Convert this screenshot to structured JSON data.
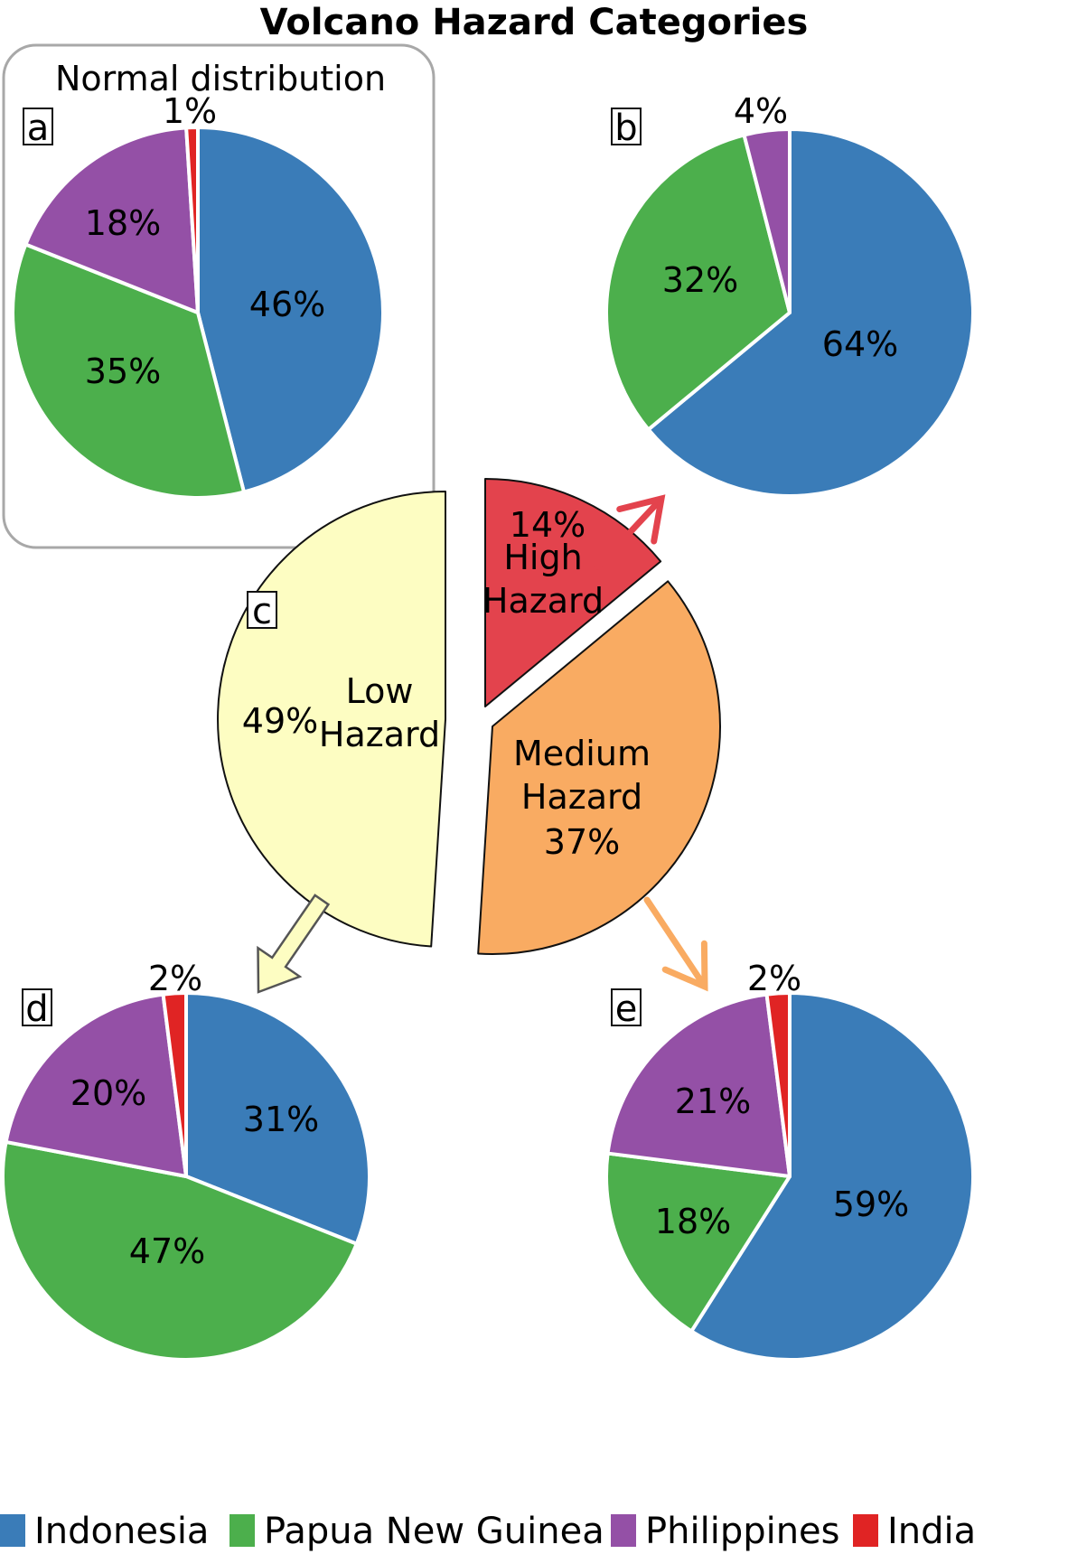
{
  "title": "Volcano Hazard Categories",
  "legend": [
    {
      "name": "Indonesia",
      "color": "#3a7cb8"
    },
    {
      "name": "Papua New Guinea",
      "color": "#4caf4c"
    },
    {
      "name": "Philippines",
      "color": "#9450a6"
    },
    {
      "name": "India",
      "color": "#e02424"
    }
  ],
  "chart_data": [
    {
      "type": "pie",
      "panel": "a",
      "subtitle": "Normal distribution",
      "categories": [
        "Indonesia",
        "Papua New Guinea",
        "Philippines",
        "India"
      ],
      "values": [
        46,
        35,
        18,
        1
      ],
      "labels": [
        "46%",
        "35%",
        "18%",
        "1%"
      ]
    },
    {
      "type": "pie",
      "panel": "b",
      "categories": [
        "Indonesia",
        "Papua New Guinea",
        "Philippines"
      ],
      "values": [
        64,
        32,
        4
      ],
      "labels": [
        "64%",
        "32%",
        "4%"
      ]
    },
    {
      "type": "pie",
      "panel": "c",
      "categories": [
        "High Hazard",
        "Medium Hazard",
        "Low Hazard"
      ],
      "values": [
        14,
        37,
        49
      ],
      "labels": [
        "14%",
        "37%",
        "49%"
      ],
      "colors": [
        "#e3434d",
        "#f9ab62",
        "#fdfdc2"
      ]
    },
    {
      "type": "pie",
      "panel": "d",
      "categories": [
        "Indonesia",
        "Papua New Guinea",
        "Philippines",
        "India"
      ],
      "values": [
        31,
        47,
        20,
        2
      ],
      "labels": [
        "31%",
        "47%",
        "20%",
        "2%"
      ]
    },
    {
      "type": "pie",
      "panel": "e",
      "categories": [
        "Indonesia",
        "Papua New Guinea",
        "Philippines",
        "India"
      ],
      "values": [
        59,
        18,
        21,
        2
      ],
      "labels": [
        "59%",
        "18%",
        "21%",
        "2%"
      ]
    }
  ]
}
